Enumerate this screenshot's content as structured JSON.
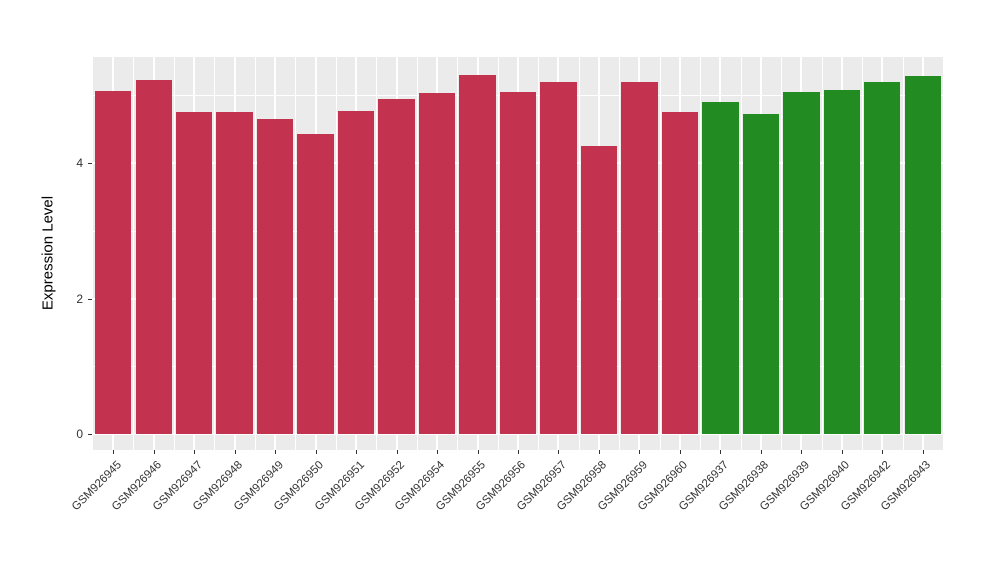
{
  "chart_data": {
    "type": "bar",
    "title": "",
    "xlabel": "",
    "ylabel": "Expression Level",
    "ylim": [
      0,
      5.56
    ],
    "yticks": [
      0,
      2,
      4
    ],
    "yticks_minor": [
      1,
      3,
      5
    ],
    "grid": "on",
    "legend": "none",
    "panel_bg": "#EBEBEB",
    "grid_color": "#FFFFFF",
    "group_colors": {
      "red": "#C3324F",
      "green": "#228B22"
    },
    "categories": [
      "GSM926945",
      "GSM926946",
      "GSM926947",
      "GSM926948",
      "GSM926949",
      "GSM926950",
      "GSM926951",
      "GSM926952",
      "GSM926954",
      "GSM926955",
      "GSM926956",
      "GSM926957",
      "GSM926958",
      "GSM926959",
      "GSM926960",
      "GSM926937",
      "GSM926938",
      "GSM926939",
      "GSM926940",
      "GSM926942",
      "GSM926943"
    ],
    "values": [
      5.06,
      5.23,
      4.76,
      4.75,
      4.65,
      4.43,
      4.77,
      4.95,
      5.03,
      5.3,
      5.05,
      5.19,
      4.25,
      5.2,
      4.76,
      4.9,
      4.72,
      5.05,
      5.08,
      5.2,
      5.28
    ],
    "groups": [
      "red",
      "red",
      "red",
      "red",
      "red",
      "red",
      "red",
      "red",
      "red",
      "red",
      "red",
      "red",
      "red",
      "red",
      "red",
      "green",
      "green",
      "green",
      "green",
      "green",
      "green"
    ]
  }
}
